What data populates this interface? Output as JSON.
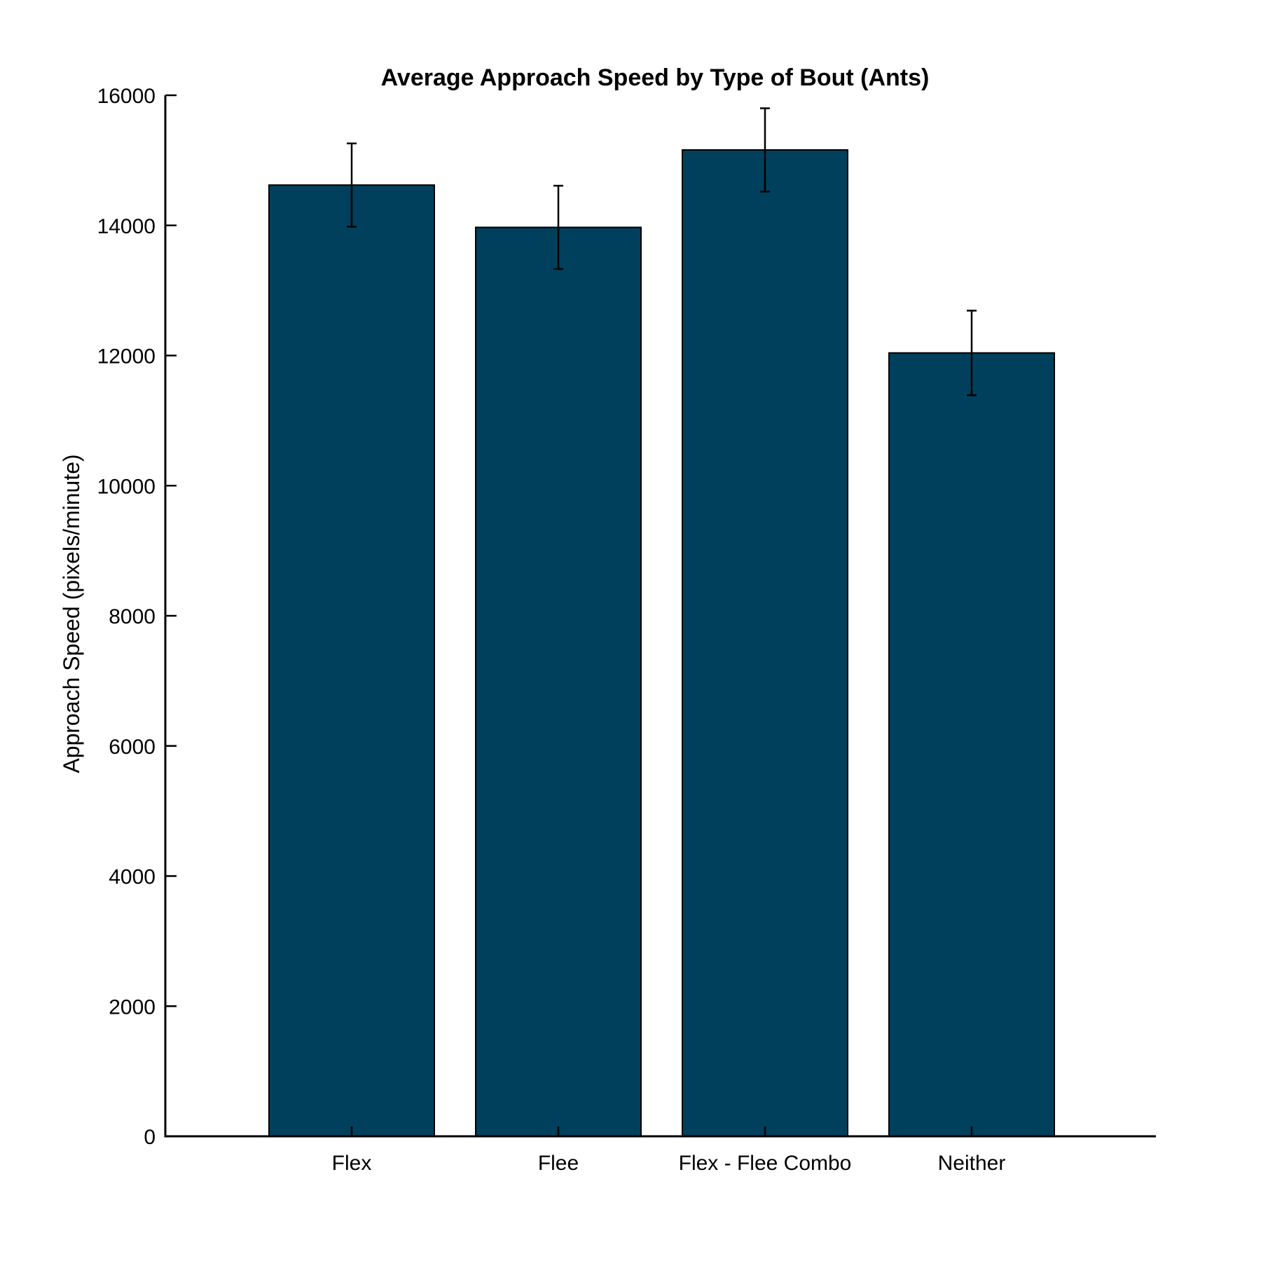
{
  "chart_data": {
    "type": "bar",
    "title": "Average Approach Speed by Type of Bout (Ants)",
    "xlabel": "",
    "ylabel": "Approach Speed (pixels/minute)",
    "categories": [
      "Flex",
      "Flee",
      "Flex - Flee Combo",
      "Neither"
    ],
    "values": [
      14620,
      13970,
      15160,
      12040
    ],
    "errors": [
      640,
      640,
      640,
      650
    ],
    "ylim": [
      0,
      16000
    ],
    "yticks": [
      0,
      2000,
      4000,
      6000,
      8000,
      10000,
      12000,
      14000,
      16000
    ],
    "ytick_labels": [
      "0",
      "2000",
      "4000",
      "6000",
      "8000",
      "10000",
      "12000",
      "14000",
      "16000"
    ],
    "grid": false,
    "colors": {
      "bar": "#00405c",
      "edge": "#000000"
    }
  }
}
